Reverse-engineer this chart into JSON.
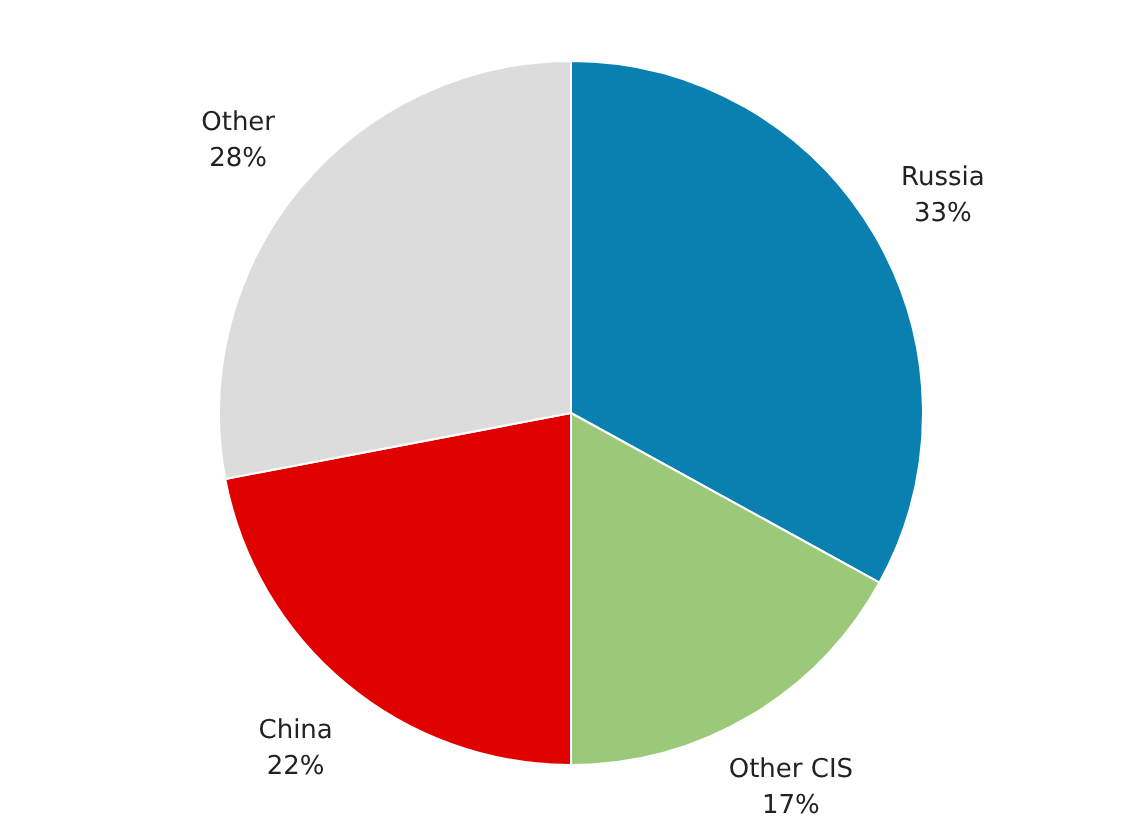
{
  "chart_data": {
    "type": "pie",
    "categories": [
      "Russia",
      "Other CIS",
      "China",
      "Other"
    ],
    "values": [
      33,
      17,
      22,
      28
    ],
    "value_labels": [
      "33%",
      "17%",
      "22%",
      "28%"
    ],
    "colors": [
      "#0a80b0",
      "#9cc87a",
      "#e00000",
      "#dcdcdc"
    ],
    "legend": false
  }
}
